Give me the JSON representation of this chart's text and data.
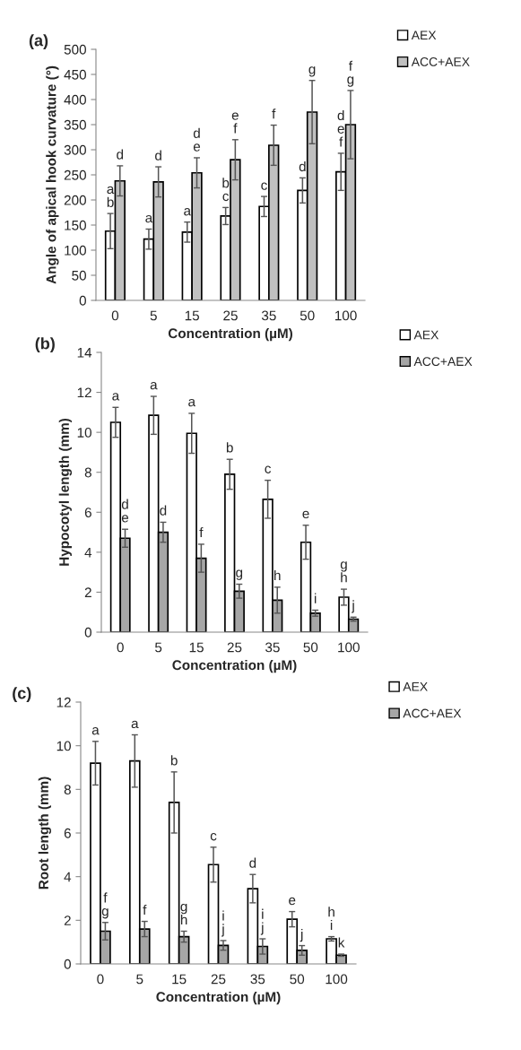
{
  "chart_data": [
    {
      "type": "bar",
      "title": "(a)",
      "xlabel": "Concentration (µM)",
      "ylabel": "Angle of apical hook curvature (°)",
      "categories": [
        "0",
        "5",
        "15",
        "25",
        "35",
        "50",
        "100"
      ],
      "ylim": [
        0,
        500
      ],
      "yticks": [
        0,
        50,
        100,
        150,
        200,
        250,
        300,
        350,
        400,
        450,
        500
      ],
      "legend": "top right",
      "grid": false,
      "series": [
        {
          "name": "AEX",
          "color": "#ffffff",
          "values": [
            138,
            122,
            136,
            168,
            187,
            219,
            256
          ],
          "errors": [
            35,
            20,
            20,
            17,
            20,
            25,
            37
          ],
          "value_labels": [
            "a\nb",
            "a",
            "a",
            "b\nc",
            "c",
            "d",
            "d\ne\nf"
          ]
        },
        {
          "name": "ACC+AEX",
          "color": "#c0c0c0",
          "values": [
            238,
            236,
            254,
            280,
            309,
            375,
            350
          ],
          "errors": [
            30,
            30,
            30,
            40,
            40,
            63,
            68
          ],
          "value_labels": [
            "d",
            "d",
            "d\ne",
            "e\nf",
            "f",
            "g",
            "f\ng"
          ]
        }
      ]
    },
    {
      "type": "bar",
      "title": "(b)",
      "xlabel": "Concentration (µM)",
      "ylabel": "Hypocotyl length (mm)",
      "categories": [
        "0",
        "5",
        "15",
        "25",
        "35",
        "50",
        "100"
      ],
      "ylim": [
        0,
        14
      ],
      "yticks": [
        0,
        2,
        4,
        6,
        8,
        10,
        12,
        14
      ],
      "legend": "top right",
      "grid": false,
      "series": [
        {
          "name": "AEX",
          "color": "#ffffff",
          "values": [
            10.5,
            10.85,
            9.95,
            7.9,
            6.65,
            4.5,
            1.75
          ],
          "errors": [
            0.75,
            0.95,
            1.0,
            0.75,
            0.95,
            0.85,
            0.4
          ],
          "value_labels": [
            "a",
            "a",
            "a",
            "b",
            "c",
            "e",
            "g\nh"
          ]
        },
        {
          "name": "ACC+AEX",
          "color": "#a6a6a6",
          "values": [
            4.7,
            5.0,
            3.7,
            2.05,
            1.6,
            0.95,
            0.65
          ],
          "errors": [
            0.45,
            0.5,
            0.7,
            0.35,
            0.65,
            0.15,
            0.1
          ],
          "value_labels": [
            "d\ne",
            "d",
            "f",
            "g",
            "h",
            "i",
            "j"
          ]
        }
      ]
    },
    {
      "type": "bar",
      "title": "(c)",
      "xlabel": "Concentration (µM)",
      "ylabel": "Root length (mm)",
      "categories": [
        "0",
        "5",
        "15",
        "25",
        "35",
        "50",
        "100"
      ],
      "ylim": [
        0,
        12
      ],
      "yticks": [
        0,
        2,
        4,
        6,
        8,
        10,
        12
      ],
      "legend": "top right",
      "grid": false,
      "series": [
        {
          "name": "AEX",
          "color": "#ffffff",
          "values": [
            9.2,
            9.3,
            7.4,
            4.55,
            3.45,
            2.05,
            1.15
          ],
          "errors": [
            1.0,
            1.2,
            1.4,
            0.8,
            0.65,
            0.35,
            0.1
          ],
          "value_labels": [
            "a",
            "a",
            "b",
            "c",
            "d",
            "e",
            "h\ni"
          ]
        },
        {
          "name": "ACC+AEX",
          "color": "#a6a6a6",
          "values": [
            1.5,
            1.6,
            1.25,
            0.85,
            0.8,
            0.62,
            0.4
          ],
          "errors": [
            0.4,
            0.35,
            0.25,
            0.22,
            0.35,
            0.22,
            0.05
          ],
          "value_labels": [
            "f\ng",
            "f",
            "g\nh",
            "i\nj",
            "i\nj",
            "j",
            "k"
          ]
        }
      ]
    }
  ]
}
